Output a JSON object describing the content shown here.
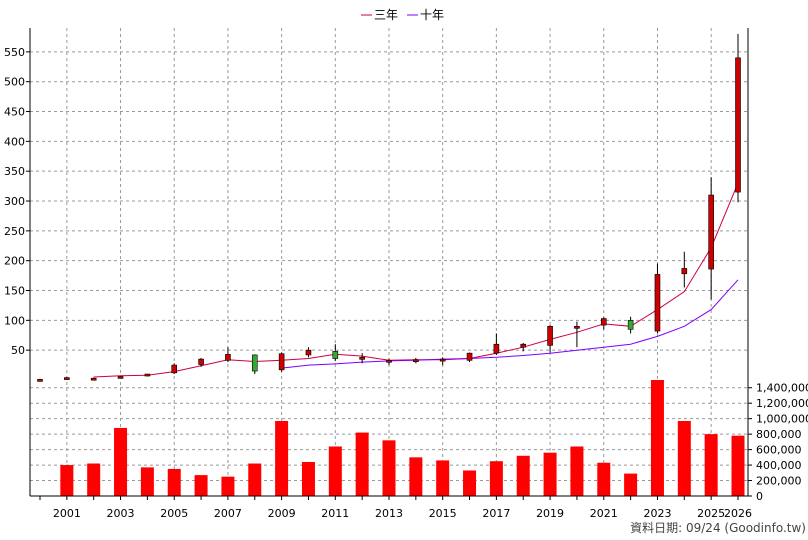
{
  "chart_data": {
    "type": "candlestick",
    "legend": [
      {
        "name": "三年",
        "color": "#cc0044"
      },
      {
        "name": "十年",
        "color": "#7f00ff"
      }
    ],
    "years": [
      2000,
      2001,
      2002,
      2003,
      2004,
      2005,
      2006,
      2007,
      2008,
      2009,
      2010,
      2011,
      2012,
      2013,
      2014,
      2015,
      2016,
      2017,
      2018,
      2019,
      2020,
      2021,
      2022,
      2023,
      2024,
      2025,
      2026
    ],
    "x_tick_labels": [
      "2001",
      "2003",
      "2005",
      "2007",
      "2009",
      "2011",
      "2013",
      "2015",
      "2017",
      "2019",
      "2021",
      "2023",
      "2025",
      "2026"
    ],
    "price_axis": {
      "ticks": [
        50,
        100,
        150,
        200,
        250,
        300,
        350,
        400,
        450,
        500,
        550
      ],
      "range": [
        0,
        590
      ]
    },
    "volume_axis": {
      "ticks": [
        "0",
        "200,000",
        "400,000",
        "600,000",
        "800,000",
        "1,000,000",
        "1,200,000",
        "1,400,000"
      ],
      "range": [
        0,
        1500000
      ]
    },
    "candles": [
      {
        "year": 2000,
        "open": 1,
        "high": 2,
        "low": 1,
        "close": 1,
        "color": "red"
      },
      {
        "year": 2001,
        "open": 3,
        "high": 5,
        "low": 2,
        "close": 4,
        "color": "red"
      },
      {
        "year": 2002,
        "open": 3,
        "high": 4,
        "low": 2,
        "close": 3,
        "color": "red"
      },
      {
        "year": 2003,
        "open": 5,
        "high": 6,
        "low": 4,
        "close": 6,
        "color": "red"
      },
      {
        "year": 2004,
        "open": 8,
        "high": 10,
        "low": 6,
        "close": 10,
        "color": "red"
      },
      {
        "year": 2005,
        "open": 12,
        "high": 28,
        "low": 10,
        "close": 25,
        "color": "red"
      },
      {
        "year": 2006,
        "open": 26,
        "high": 37,
        "low": 22,
        "close": 35,
        "color": "red"
      },
      {
        "year": 2007,
        "open": 33,
        "high": 55,
        "low": 30,
        "close": 43,
        "color": "red"
      },
      {
        "year": 2008,
        "open": 42,
        "high": 43,
        "low": 10,
        "close": 15,
        "color": "green"
      },
      {
        "year": 2009,
        "open": 17,
        "high": 46,
        "low": 14,
        "close": 44,
        "color": "red"
      },
      {
        "year": 2010,
        "open": 42,
        "high": 55,
        "low": 38,
        "close": 50,
        "color": "red"
      },
      {
        "year": 2011,
        "open": 48,
        "high": 60,
        "low": 32,
        "close": 36,
        "color": "green"
      },
      {
        "year": 2012,
        "open": 36,
        "high": 45,
        "low": 28,
        "close": 38,
        "color": "red"
      },
      {
        "year": 2013,
        "open": 30,
        "high": 36,
        "low": 25,
        "close": 33,
        "color": "red"
      },
      {
        "year": 2014,
        "open": 32,
        "high": 37,
        "low": 28,
        "close": 34,
        "color": "red"
      },
      {
        "year": 2015,
        "open": 34,
        "high": 38,
        "low": 25,
        "close": 35,
        "color": "red"
      },
      {
        "year": 2016,
        "open": 33,
        "high": 46,
        "low": 30,
        "close": 45,
        "color": "red"
      },
      {
        "year": 2017,
        "open": 45,
        "high": 78,
        "low": 42,
        "close": 60,
        "color": "red"
      },
      {
        "year": 2018,
        "open": 55,
        "high": 62,
        "low": 48,
        "close": 60,
        "color": "red"
      },
      {
        "year": 2019,
        "open": 58,
        "high": 92,
        "low": 46,
        "close": 90,
        "color": "red"
      },
      {
        "year": 2020,
        "open": 88,
        "high": 98,
        "low": 55,
        "close": 90,
        "color": "red"
      },
      {
        "year": 2021,
        "open": 92,
        "high": 105,
        "low": 85,
        "close": 103,
        "color": "red"
      },
      {
        "year": 2022,
        "open": 100,
        "high": 106,
        "low": 78,
        "close": 85,
        "color": "green"
      },
      {
        "year": 2023,
        "open": 82,
        "high": 195,
        "low": 78,
        "close": 177,
        "color": "red"
      },
      {
        "year": 2024,
        "open": 178,
        "high": 215,
        "low": 155,
        "close": 187,
        "color": "red"
      },
      {
        "year": 2025,
        "open": 186,
        "high": 340,
        "low": 135,
        "close": 310,
        "color": "red"
      },
      {
        "year": 2026,
        "open": 315,
        "high": 580,
        "low": 298,
        "close": 540,
        "color": "red"
      }
    ],
    "ma_three_year": [
      {
        "year": 2002,
        "value": 5
      },
      {
        "year": 2003,
        "value": 7
      },
      {
        "year": 2004,
        "value": 8
      },
      {
        "year": 2005,
        "value": 14
      },
      {
        "year": 2006,
        "value": 24
      },
      {
        "year": 2007,
        "value": 34
      },
      {
        "year": 2008,
        "value": 31
      },
      {
        "year": 2009,
        "value": 33
      },
      {
        "year": 2010,
        "value": 36
      },
      {
        "year": 2011,
        "value": 43
      },
      {
        "year": 2012,
        "value": 40
      },
      {
        "year": 2013,
        "value": 33
      },
      {
        "year": 2014,
        "value": 34
      },
      {
        "year": 2015,
        "value": 34
      },
      {
        "year": 2016,
        "value": 36
      },
      {
        "year": 2017,
        "value": 45
      },
      {
        "year": 2018,
        "value": 55
      },
      {
        "year": 2019,
        "value": 68
      },
      {
        "year": 2020,
        "value": 80
      },
      {
        "year": 2021,
        "value": 94
      },
      {
        "year": 2022,
        "value": 90
      },
      {
        "year": 2023,
        "value": 118
      },
      {
        "year": 2024,
        "value": 148
      },
      {
        "year": 2025,
        "value": 222
      },
      {
        "year": 2026,
        "value": 330
      }
    ],
    "ma_ten_year": [
      {
        "year": 2009,
        "value": 20
      },
      {
        "year": 2010,
        "value": 25
      },
      {
        "year": 2011,
        "value": 27
      },
      {
        "year": 2012,
        "value": 30
      },
      {
        "year": 2013,
        "value": 32
      },
      {
        "year": 2014,
        "value": 33
      },
      {
        "year": 2015,
        "value": 35
      },
      {
        "year": 2016,
        "value": 36
      },
      {
        "year": 2017,
        "value": 38
      },
      {
        "year": 2018,
        "value": 41
      },
      {
        "year": 2019,
        "value": 45
      },
      {
        "year": 2020,
        "value": 50
      },
      {
        "year": 2021,
        "value": 55
      },
      {
        "year": 2022,
        "value": 60
      },
      {
        "year": 2023,
        "value": 73
      },
      {
        "year": 2024,
        "value": 90
      },
      {
        "year": 2025,
        "value": 118
      },
      {
        "year": 2026,
        "value": 168
      }
    ],
    "volume": [
      {
        "year": 2001,
        "value": 400000
      },
      {
        "year": 2002,
        "value": 420000
      },
      {
        "year": 2003,
        "value": 880000
      },
      {
        "year": 2004,
        "value": 370000
      },
      {
        "year": 2005,
        "value": 350000
      },
      {
        "year": 2006,
        "value": 270000
      },
      {
        "year": 2007,
        "value": 250000
      },
      {
        "year": 2008,
        "value": 420000
      },
      {
        "year": 2009,
        "value": 970000
      },
      {
        "year": 2010,
        "value": 440000
      },
      {
        "year": 2011,
        "value": 640000
      },
      {
        "year": 2012,
        "value": 820000
      },
      {
        "year": 2013,
        "value": 720000
      },
      {
        "year": 2014,
        "value": 500000
      },
      {
        "year": 2015,
        "value": 460000
      },
      {
        "year": 2016,
        "value": 330000
      },
      {
        "year": 2017,
        "value": 450000
      },
      {
        "year": 2018,
        "value": 520000
      },
      {
        "year": 2019,
        "value": 560000
      },
      {
        "year": 2020,
        "value": 640000
      },
      {
        "year": 2021,
        "value": 430000
      },
      {
        "year": 2022,
        "value": 290000
      },
      {
        "year": 2023,
        "value": 1500000
      },
      {
        "year": 2024,
        "value": 970000
      },
      {
        "year": 2025,
        "value": 800000
      },
      {
        "year": 2026,
        "value": 780000
      }
    ],
    "grid": true,
    "colors": {
      "up": "#cc0000",
      "down": "#33aa33",
      "volume": "#ff0000"
    }
  },
  "footer": "資料日期: 09/24  (Goodinfo.tw)"
}
